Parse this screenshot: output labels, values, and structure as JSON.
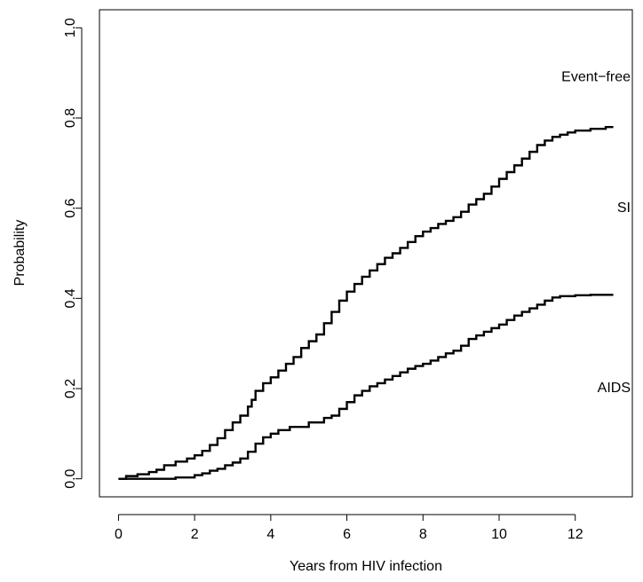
{
  "chart_data": {
    "type": "line",
    "title": "",
    "xlabel": "Years from HIV infection",
    "ylabel": "Probability",
    "xlim": [
      -0.5,
      13.5
    ],
    "ylim": [
      -0.04,
      1.04
    ],
    "xticks": [
      0,
      2,
      4,
      6,
      8,
      10,
      12
    ],
    "yticks": [
      0.0,
      0.2,
      0.4,
      0.6,
      0.8,
      1.0
    ],
    "xtick_labels": [
      "0",
      "2",
      "4",
      "6",
      "8",
      "10",
      "12"
    ],
    "ytick_labels": [
      "0.0",
      "0.2",
      "0.4",
      "0.6",
      "0.8",
      "1.0"
    ],
    "grid": false,
    "step": true,
    "line_color": "#000000",
    "series": [
      {
        "x": [
          0,
          0.2,
          0.5,
          0.8,
          1.0,
          1.2,
          1.5,
          1.8,
          2.0,
          2.2,
          2.4,
          2.6,
          2.8,
          3.0,
          3.2,
          3.4,
          3.5,
          3.6,
          3.8,
          4.0,
          4.2,
          4.4,
          4.6,
          4.8,
          5.0,
          5.2,
          5.4,
          5.6,
          5.8,
          6.0,
          6.2,
          6.4,
          6.6,
          6.8,
          7.0,
          7.2,
          7.4,
          7.6,
          7.8,
          8.0,
          8.2,
          8.4,
          8.6,
          8.8,
          9.0,
          9.2,
          9.4,
          9.6,
          9.8,
          10.0,
          10.2,
          10.4,
          10.6,
          10.8,
          11.0,
          11.2,
          11.4,
          11.6,
          11.8,
          12.0,
          12.4,
          12.8,
          13.0
        ],
        "values": [
          0.0,
          0.006,
          0.01,
          0.015,
          0.02,
          0.03,
          0.038,
          0.045,
          0.052,
          0.062,
          0.075,
          0.09,
          0.108,
          0.125,
          0.14,
          0.16,
          0.175,
          0.195,
          0.212,
          0.225,
          0.24,
          0.255,
          0.27,
          0.29,
          0.305,
          0.32,
          0.345,
          0.37,
          0.395,
          0.415,
          0.432,
          0.448,
          0.462,
          0.476,
          0.49,
          0.5,
          0.512,
          0.525,
          0.538,
          0.548,
          0.556,
          0.565,
          0.572,
          0.58,
          0.592,
          0.608,
          0.62,
          0.632,
          0.648,
          0.665,
          0.68,
          0.695,
          0.71,
          0.725,
          0.74,
          0.75,
          0.758,
          0.763,
          0.768,
          0.772,
          0.776,
          0.78,
          0.78
        ]
      },
      {
        "x": [
          0,
          0.5,
          1.0,
          1.5,
          2.0,
          2.2,
          2.4,
          2.6,
          2.8,
          3.0,
          3.2,
          3.4,
          3.6,
          3.8,
          4.0,
          4.2,
          4.5,
          5.0,
          5.4,
          5.6,
          5.8,
          6.0,
          6.2,
          6.4,
          6.6,
          6.8,
          7.0,
          7.2,
          7.4,
          7.6,
          7.8,
          8.0,
          8.2,
          8.4,
          8.6,
          8.8,
          9.0,
          9.2,
          9.4,
          9.6,
          9.8,
          10.0,
          10.2,
          10.4,
          10.6,
          10.8,
          11.0,
          11.2,
          11.4,
          11.6,
          12.0,
          12.4,
          13.0
        ],
        "values": [
          0.0,
          0.0,
          0.0,
          0.003,
          0.008,
          0.012,
          0.018,
          0.022,
          0.03,
          0.036,
          0.045,
          0.06,
          0.078,
          0.092,
          0.1,
          0.108,
          0.115,
          0.125,
          0.135,
          0.14,
          0.155,
          0.17,
          0.185,
          0.195,
          0.205,
          0.212,
          0.22,
          0.228,
          0.236,
          0.244,
          0.25,
          0.255,
          0.262,
          0.27,
          0.278,
          0.284,
          0.295,
          0.31,
          0.318,
          0.326,
          0.334,
          0.342,
          0.352,
          0.362,
          0.37,
          0.378,
          0.386,
          0.395,
          0.402,
          0.405,
          0.407,
          0.408,
          0.408
        ]
      }
    ],
    "region_labels": [
      "Event−free",
      "SI",
      "AIDS"
    ],
    "region_label_positions_y": [
      0.89,
      0.6,
      0.2
    ]
  }
}
